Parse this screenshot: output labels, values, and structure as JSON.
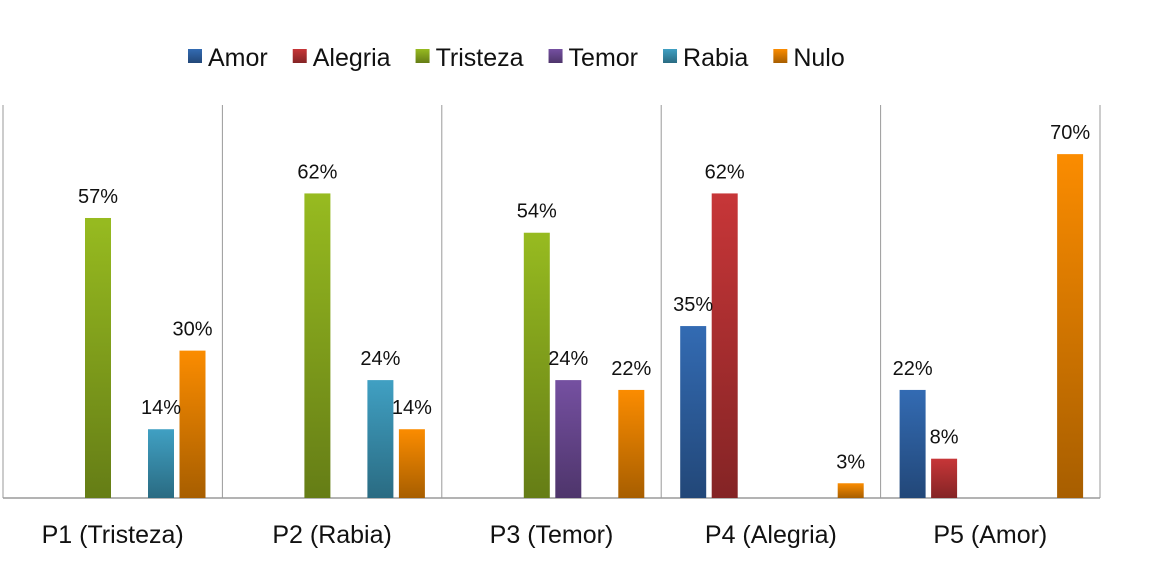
{
  "chart_data": {
    "type": "bar",
    "title": "",
    "xlabel": "",
    "ylabel": "",
    "ylim": [
      0,
      80
    ],
    "grid": false,
    "legend_position": "top-center",
    "categories": [
      "P1  (Tristeza)",
      "P2 (Rabia)",
      "P3 (Temor)",
      "P4 (Alegria)",
      "P5 (Amor)"
    ],
    "series": [
      {
        "name": "Amor",
        "color": "#2f63a6",
        "values": [
          null,
          null,
          null,
          35,
          22
        ]
      },
      {
        "name": "Alegria",
        "color": "#b83234",
        "values": [
          null,
          null,
          null,
          62,
          8
        ]
      },
      {
        "name": "Tristeza",
        "color": "#8cad1e",
        "values": [
          57,
          62,
          54,
          null,
          null
        ]
      },
      {
        "name": "Temor",
        "color": "#6c4a95",
        "values": [
          null,
          null,
          24,
          null,
          null
        ]
      },
      {
        "name": "Rabia",
        "color": "#3b94b5",
        "values": [
          14,
          24,
          null,
          null,
          null
        ]
      },
      {
        "name": "Nulo",
        "color": "#e88200",
        "values": [
          30,
          14,
          22,
          3,
          70
        ]
      }
    ],
    "value_suffix": "%"
  }
}
